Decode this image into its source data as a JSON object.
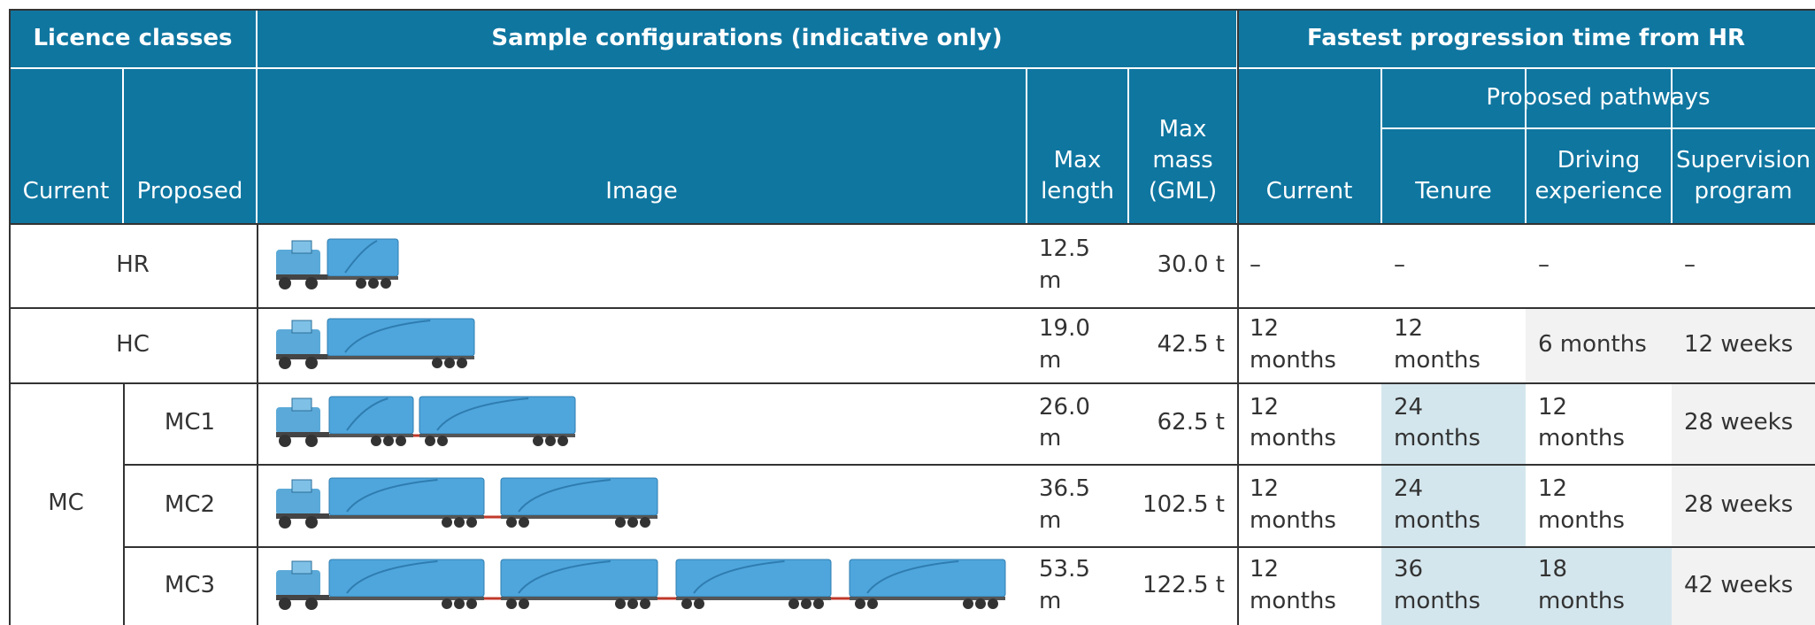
{
  "table": {
    "group_headers": [
      "Licence classes",
      "Sample configurations (indicative only)",
      "Fastest progression time from HR"
    ],
    "sub_group_header": "Proposed pathways",
    "columns": [
      "Current",
      "Proposed",
      "Image",
      "Max length",
      "Max mass (GML)",
      "Current",
      "Tenure",
      "Driving experience",
      "Supervision program"
    ],
    "rows": [
      {
        "licence": "HR",
        "max_length": "12.5 m",
        "max_mass": "30.0 t",
        "current": "–",
        "tenure": "–",
        "driving_experience": "–",
        "supervision_program": "–"
      },
      {
        "licence": "HC",
        "max_length": "19.0 m",
        "max_mass": "42.5 t",
        "current": "12 months",
        "tenure": "12 months",
        "driving_experience": "6 months",
        "supervision_program": "12 weeks"
      },
      {
        "current_class": "MC",
        "proposed_class": "MC1",
        "max_length": "26.0 m",
        "max_mass": "62.5 t",
        "current": "12 months",
        "tenure": "24 months",
        "driving_experience": "12 months",
        "supervision_program": "28 weeks"
      },
      {
        "proposed_class": "MC2",
        "max_length": "36.5 m",
        "max_mass": "102.5 t",
        "current": "12 months",
        "tenure": "24 months",
        "driving_experience": "12 months",
        "supervision_program": "28 weeks"
      },
      {
        "proposed_class": "MC3",
        "max_length": "53.5 m",
        "max_mass": "122.5 t",
        "current": "12 months",
        "tenure": "36 months",
        "driving_experience": "18 months",
        "supervision_program": "42 weeks"
      }
    ]
  }
}
